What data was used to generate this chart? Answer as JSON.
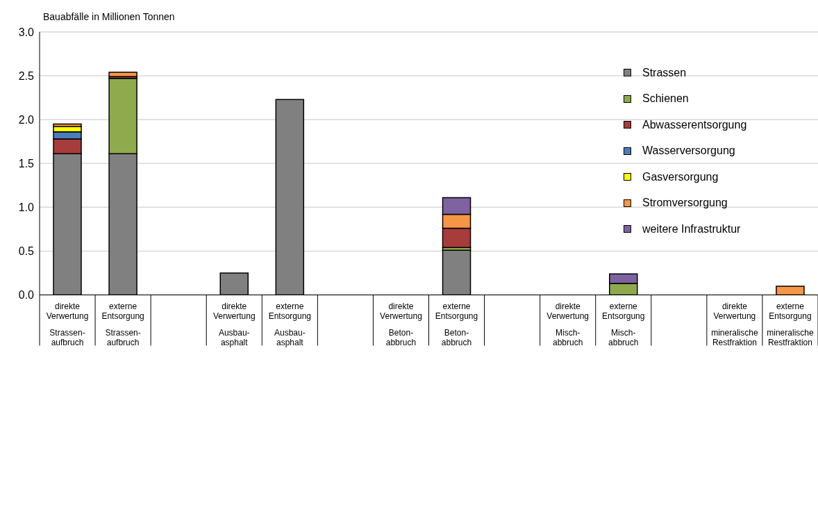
{
  "chart_data": {
    "type": "bar",
    "stacked": true,
    "ylabel": "Bauabfälle in Millionen Tonnen",
    "categories": [
      "direkte\nVerwertung\nStrassen-\naufbruch",
      "externe\nEntsorgung\nStrassen-\naufbruch",
      null,
      "direkte\nVerwertung\nAusbau-\nasphalt",
      "externe\nEntsorgung\nAusbau-\nasphalt",
      null,
      "direkte\nVerwertung\nBeton-\nabbruch",
      "externe\nEntsorgung\nBeton-\nabbruch",
      null,
      "direkte\nVerwertung\nMisch-\nabbruch",
      "externe\nEntsorgung\nMisch-\nabbruch",
      null,
      "direkte\nVerwertung\nmineralische\nRestfraktion",
      "externe\nEntsorgung\nmineralische\nRestfraktion"
    ],
    "series": [
      {
        "name": "Strassen",
        "color": "#808080",
        "values": [
          1.61,
          1.61,
          null,
          0.25,
          2.23,
          null,
          null,
          0.51,
          null,
          null,
          null,
          null,
          null,
          null
        ]
      },
      {
        "name": "Schienen",
        "color": "#8faa4c",
        "values": [
          null,
          0.86,
          null,
          null,
          null,
          null,
          null,
          0.03,
          null,
          null,
          0.13,
          null,
          null,
          null
        ]
      },
      {
        "name": "Abwasserentsorgung",
        "color": "#a83c3a",
        "values": [
          0.17,
          0.02,
          null,
          null,
          null,
          null,
          null,
          0.22,
          null,
          null,
          null,
          null,
          null,
          null
        ]
      },
      {
        "name": "Wasserversorgung",
        "color": "#4a7ebb",
        "values": [
          0.08,
          null,
          null,
          null,
          null,
          null,
          null,
          null,
          null,
          null,
          null,
          null,
          null,
          null
        ]
      },
      {
        "name": "Gasversorgung",
        "color": "#ffff00",
        "values": [
          0.06,
          null,
          null,
          null,
          null,
          null,
          null,
          null,
          null,
          null,
          null,
          null,
          null,
          null
        ]
      },
      {
        "name": "Stromversorgung",
        "color": "#f79646",
        "values": [
          0.03,
          0.05,
          null,
          null,
          null,
          null,
          null,
          0.16,
          null,
          null,
          null,
          null,
          null,
          0.1
        ]
      },
      {
        "name": "weitere Infrastruktur",
        "color": "#7f62a0",
        "values": [
          null,
          null,
          null,
          null,
          null,
          null,
          null,
          0.19,
          null,
          null,
          0.11,
          null,
          null,
          null
        ]
      }
    ],
    "ylim": [
      0,
      3
    ],
    "yticks": [
      {
        "value": 0,
        "label": "0.0"
      },
      {
        "value": 0.5,
        "label": "0.5"
      },
      {
        "value": 1,
        "label": "1.0"
      },
      {
        "value": 1.5,
        "label": "1.5"
      },
      {
        "value": 2,
        "label": "2.0"
      },
      {
        "value": 2.5,
        "label": "2.5"
      },
      {
        "value": 3,
        "label": "3.0"
      }
    ],
    "grid": "y",
    "legend": "top right"
  }
}
